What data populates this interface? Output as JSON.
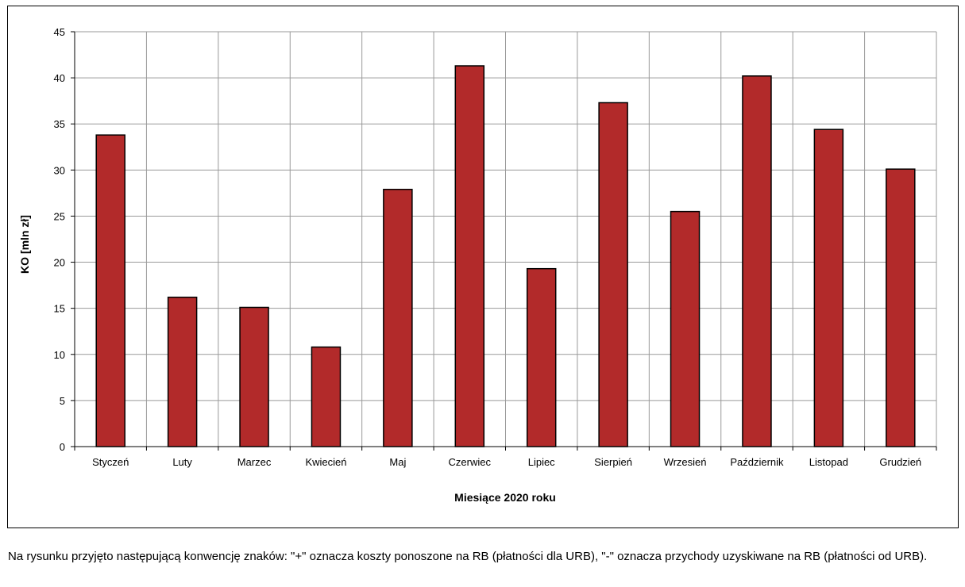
{
  "chart_data": {
    "type": "bar",
    "categories": [
      "Styczeń",
      "Luty",
      "Marzec",
      "Kwiecień",
      "Maj",
      "Czerwiec",
      "Lipiec",
      "Sierpień",
      "Wrzesień",
      "Październik",
      "Listopad",
      "Grudzień"
    ],
    "values": [
      33.8,
      16.2,
      15.1,
      10.8,
      27.9,
      41.3,
      19.3,
      37.3,
      25.5,
      40.2,
      34.4,
      30.1
    ],
    "xlabel": "Miesiące  2020 roku",
    "ylabel": "KO [mln zł]",
    "ylim": [
      0,
      45
    ],
    "yticks": [
      0,
      5,
      10,
      15,
      20,
      25,
      30,
      35,
      40,
      45
    ],
    "grid": true,
    "colors": {
      "bar": "#B22A2A",
      "bar_border": "#000000",
      "grid": "#999999"
    }
  },
  "footnote": "Na rysunku przyjęto następującą konwencję znaków: \"+\" oznacza koszty ponoszone na RB (płatności dla URB), \"-\" oznacza przychody uzyskiwane na RB (płatności od URB)."
}
